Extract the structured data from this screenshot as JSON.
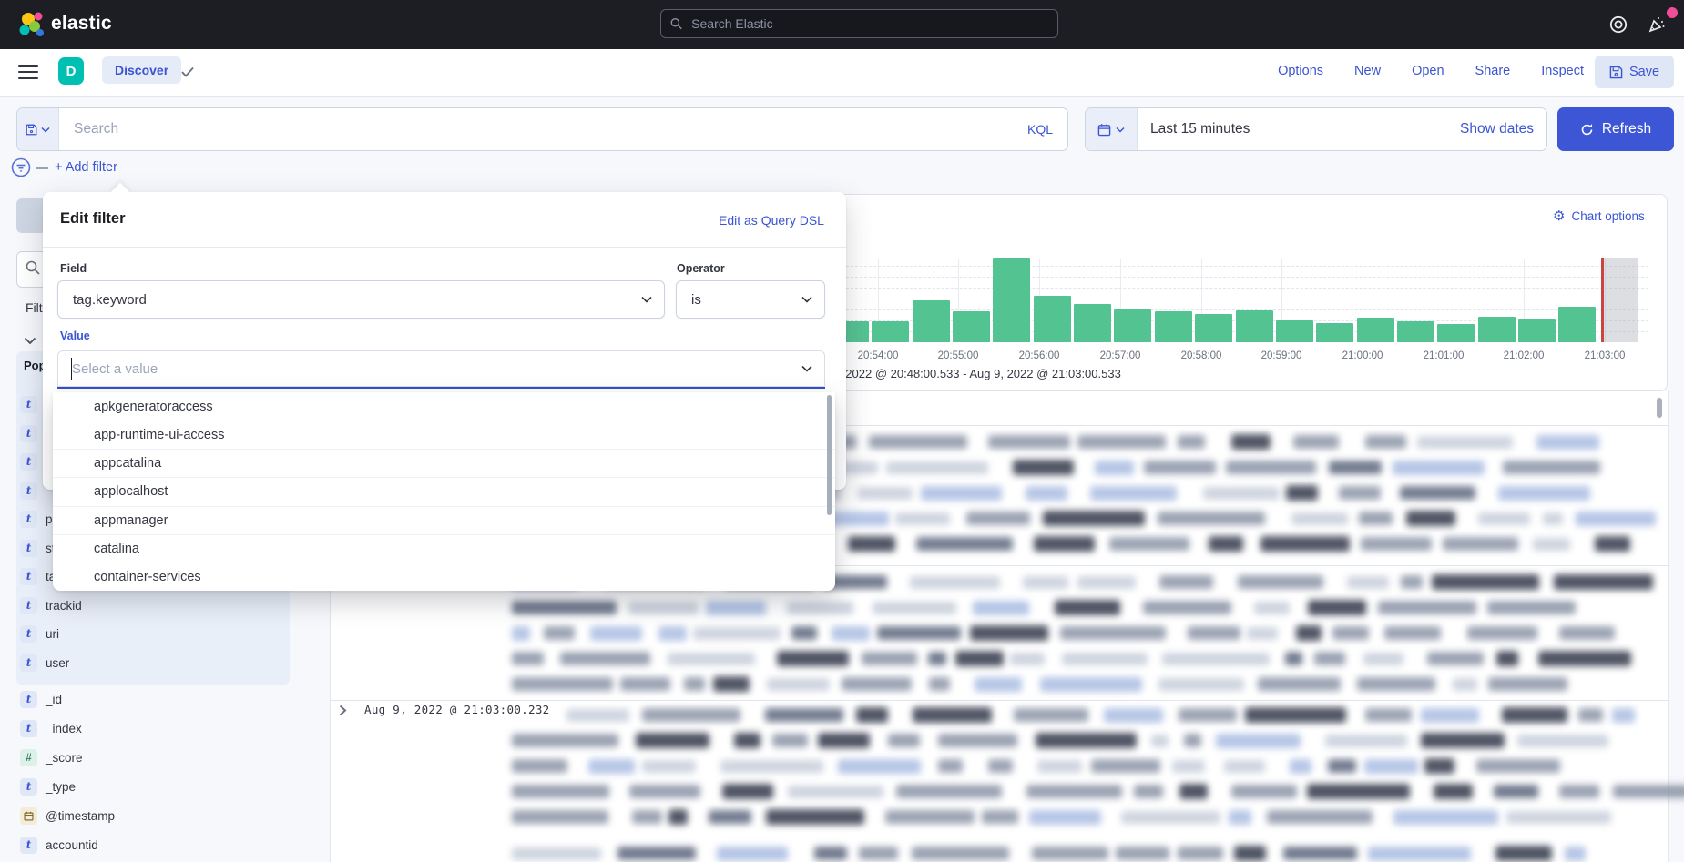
{
  "colors": {
    "primary": "#3b55d2",
    "topbar_bg": "#1d1e24",
    "app_badge": "#00bfb3",
    "bar_green": "#54c392",
    "danger_red": "#c94540",
    "popular_bg": "#e9eff9"
  },
  "topbar": {
    "logo_text": "elastic",
    "search_placeholder": "Search Elastic"
  },
  "toolbar": {
    "app_initial": "D",
    "breadcrumb": "Discover",
    "links": [
      "Options",
      "New",
      "Open",
      "Share",
      "Inspect"
    ],
    "save_label": "Save"
  },
  "query_bar": {
    "search_placeholder": "Search",
    "language_badge": "KQL",
    "time_range": "Last 15 minutes",
    "show_dates_label": "Show dates",
    "refresh_label": "Refresh"
  },
  "filter_bar": {
    "add_filter_label": "+ Add filter"
  },
  "sidebar": {
    "filter_by_type_fragment": "Filt",
    "popular_header_fragment": "Pop",
    "popular_fields": [
      {
        "type": "t",
        "label": ""
      },
      {
        "type": "t",
        "label": ""
      },
      {
        "type": "t",
        "label": ""
      },
      {
        "type": "t",
        "label": ""
      },
      {
        "type": "t",
        "label": "pr"
      },
      {
        "type": "t",
        "label": "st"
      },
      {
        "type": "t",
        "label": "ta"
      },
      {
        "type": "t",
        "label": "trackid"
      },
      {
        "type": "t",
        "label": "uri"
      },
      {
        "type": "t",
        "label": "user"
      }
    ],
    "meta_fields": [
      {
        "type": "t",
        "label": "_id"
      },
      {
        "type": "t",
        "label": "_index"
      },
      {
        "type": "#",
        "label": "_score"
      },
      {
        "type": "t",
        "label": "_type"
      },
      {
        "type": "date",
        "label": "@timestamp"
      },
      {
        "type": "t",
        "label": "accountid"
      }
    ]
  },
  "filter_popover": {
    "title": "Edit filter",
    "edit_dsl_label": "Edit as Query DSL",
    "field_label": "Field",
    "field_value": "tag.keyword",
    "operator_label": "Operator",
    "operator_value": "is",
    "value_label": "Value",
    "value_placeholder": "Select a value",
    "options": [
      "apkgeneratoraccess",
      "app-runtime-ui-access",
      "appcatalina",
      "applocalhost",
      "appmanager",
      "catalina",
      "container-services"
    ]
  },
  "histogram": {
    "chart_options_label": "Chart options",
    "time_caption_fragment": "g 9, 2022 @ 20:48:00.533 - Aug 9, 2022 @ 21:03:00.533"
  },
  "chart_data": {
    "type": "bar",
    "title": "Aug 9, 2022 @ 20:48:00.533 - Aug 9, 2022 @ 21:03:00.533 (visible fragment)",
    "x": [
      "20:53:30",
      "20:54:00",
      "20:54:30",
      "20:55:00",
      "20:55:30",
      "20:56:00",
      "20:56:30",
      "20:57:00",
      "20:57:30",
      "20:58:00",
      "20:58:30",
      "20:59:00",
      "20:59:30",
      "21:00:00",
      "21:00:30",
      "21:01:00",
      "21:01:30",
      "21:02:00",
      "21:02:30"
    ],
    "values": [
      23,
      23,
      46,
      34,
      93,
      51,
      42,
      36,
      34,
      31,
      35,
      24,
      21,
      27,
      23,
      20,
      28,
      25,
      39
    ],
    "value_unit": "relative bar height in px (y axis not labeled in screenshot)",
    "x_tick_labels": [
      "20:54:00",
      "20:55:00",
      "20:56:00",
      "20:57:00",
      "20:58:00",
      "20:59:00",
      "21:00:00",
      "21:01:00",
      "21:02:00",
      "21:03:00"
    ],
    "xlabel": "",
    "ylabel": "",
    "grid": "dashed horizontal + solid vertical per minute",
    "annotations": "red current-time line near 21:03:00 with gray shaded partial bucket",
    "bar_color": "#54c392"
  },
  "doc_table": {
    "rows": [
      {
        "timestamp": "",
        "lines": 5
      },
      {
        "timestamp": "",
        "lines": 5
      },
      {
        "timestamp": "Aug 9, 2022 @ 21:03:00.232",
        "lines": 5
      },
      {
        "timestamp": "",
        "lines": 1
      }
    ],
    "note": "document content redacted/blurred in screenshot"
  }
}
